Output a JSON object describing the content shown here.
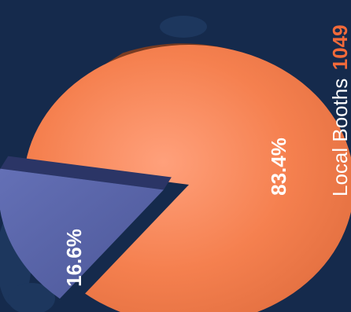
{
  "chart_data": {
    "type": "pie",
    "title": "",
    "slices": [
      {
        "label": "",
        "percent_label": "83.4%",
        "value": 83.4,
        "color": "#f5804f"
      },
      {
        "label": "",
        "percent_label": "16.6%",
        "value": 16.6,
        "color": "#5460a4"
      }
    ],
    "legend": {
      "name": "Local Booths",
      "value": "1049",
      "value_color": "#f26a3a"
    }
  },
  "colors": {
    "background": "#152a4c",
    "background_shape": "#1f3a63",
    "main_slice": "#f5804f",
    "main_slice_side": "#6e3520",
    "small_slice": "#5460a4"
  }
}
